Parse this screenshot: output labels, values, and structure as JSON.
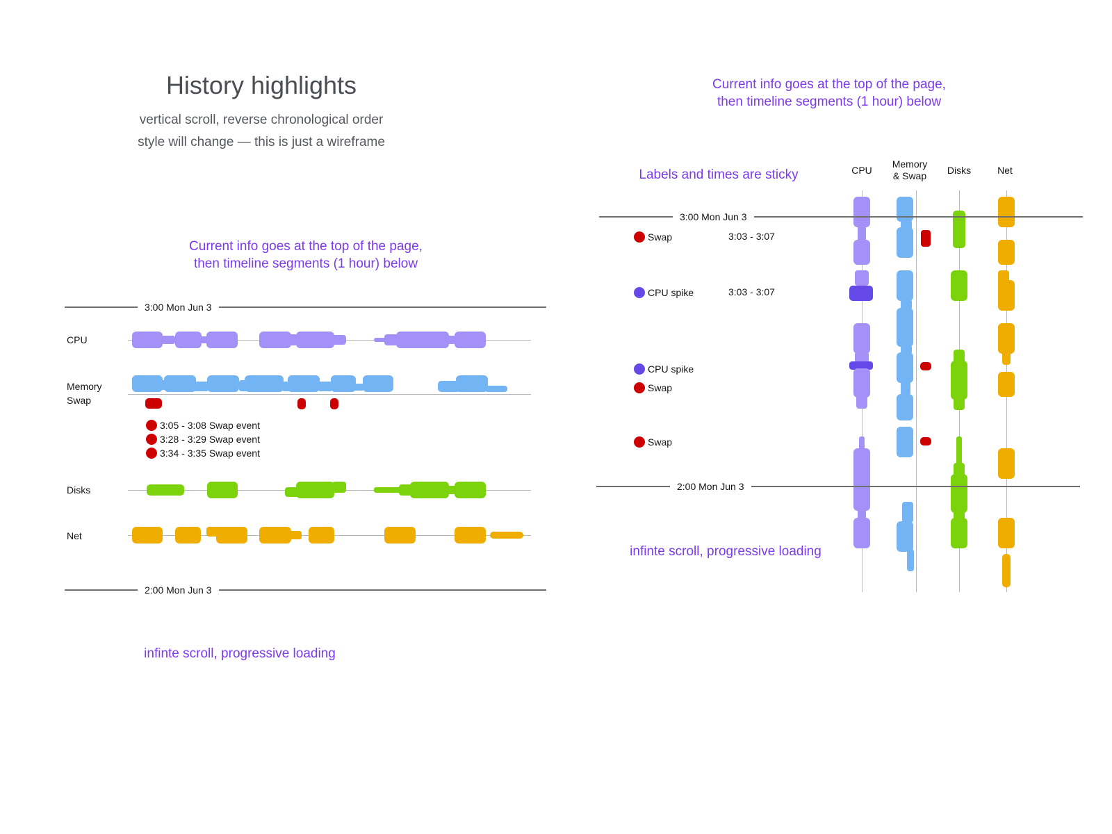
{
  "title": "History highlights",
  "subtitle_lines": [
    "vertical scroll, reverse chronological order",
    "style will change — this is just a wireframe"
  ],
  "colors": {
    "cpu": "#a491f7",
    "cpu_spike": "#6548e8",
    "memory": "#73b4f4",
    "swap": "#cc0000",
    "disks": "#7dd30b",
    "net": "#efad00",
    "net_alt": "#e59400",
    "note": "#7c3aed",
    "spike_dot": "#6548e8"
  },
  "horizontal": {
    "note_lines": [
      "Current info goes at the top of the page,",
      "then timeline segments (1 hour) below"
    ],
    "time_top": "3:00 Mon Jun 3",
    "time_bottom": "2:00 Mon Jun 3",
    "rows": {
      "cpu": "CPU",
      "memory_swap_lines": [
        "Memory",
        "Swap"
      ],
      "disks": "Disks",
      "net": "Net"
    },
    "swap_events": [
      "3:05 - 3:08 Swap event",
      "3:28 - 3:29 Swap event",
      "3:34 - 3:35 Swap event"
    ],
    "footer": "infinte scroll, progressive loading"
  },
  "vertical": {
    "note_lines": [
      "Current info goes at the top of the page,",
      "then timeline segments (1 hour) below"
    ],
    "sticky_note": "Labels and times are sticky",
    "columns": {
      "cpu": "CPU",
      "memory_swap_lines": [
        "Memory",
        "& Swap"
      ],
      "disks": "Disks",
      "net": "Net"
    },
    "time_top": "3:00 Mon Jun 3",
    "time_bottom": "2:00 Mon Jun 3",
    "events": [
      {
        "type": "swap",
        "label": "Swap",
        "time": "3:03 - 3:07"
      },
      {
        "type": "cpu",
        "label": "CPU spike",
        "time": "3:03 - 3:07"
      },
      {
        "type": "cpu",
        "label": "CPU spike",
        "time": ""
      },
      {
        "type": "swap",
        "label": "Swap",
        "time": ""
      },
      {
        "type": "swap",
        "label": "Swap",
        "time": ""
      }
    ],
    "footer": "infinte scroll, progressive loading"
  }
}
